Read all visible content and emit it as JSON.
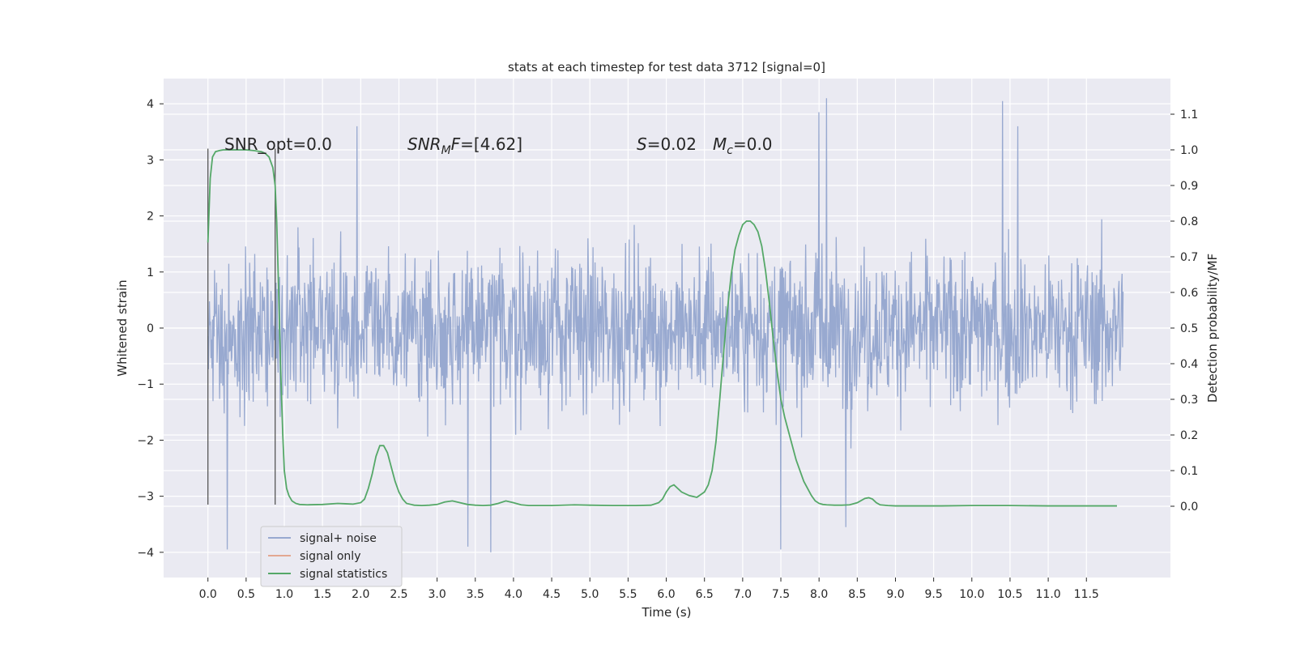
{
  "chart_data": {
    "type": "line",
    "title": "stats at each timestep for test data 3712 [signal=0]",
    "xlabel": "Time (s)",
    "ylabel": "Whitened strain",
    "ylabel_right": "Detection probability/MF",
    "xlim": [
      -0.58,
      12.6
    ],
    "ylim": [
      -4.45,
      4.45
    ],
    "ylim_right": [
      -0.2,
      1.2
    ],
    "x_ticks": [
      "0.0",
      "0.5",
      "1.0",
      "1.5",
      "2.0",
      "2.5",
      "3.0",
      "3.5",
      "4.0",
      "4.5",
      "5.0",
      "5.5",
      "6.0",
      "6.5",
      "7.0",
      "7.5",
      "8.0",
      "8.5",
      "9.0",
      "9.5",
      "10.0",
      "10.5",
      "11.0",
      "11.5"
    ],
    "y_ticks": [
      "4",
      "3",
      "2",
      "1",
      "0",
      "−1",
      "−2",
      "−3",
      "−4"
    ],
    "y_right_ticks": [
      "1.1",
      "1.0",
      "0.9",
      "0.8",
      "0.7",
      "0.6",
      "0.5",
      "0.4",
      "0.3",
      "0.2",
      "0.1",
      "0.0"
    ],
    "grid": true,
    "legend_position": "lower-left",
    "series": [
      {
        "name": "signal+ noise",
        "color": "#98a9d0",
        "axis": "left",
        "x_range": [
          0.0,
          11.98
        ],
        "typical_range": [
          -2.1,
          2.1
        ],
        "extremes": [
          -4.1,
          4.1
        ],
        "notable_peaks": [
          [
            1.95,
            3.6
          ],
          [
            8.0,
            3.85
          ],
          [
            8.1,
            4.1
          ],
          [
            10.4,
            4.05
          ],
          [
            10.6,
            3.6
          ],
          [
            3.7,
            -4.0
          ],
          [
            3.4,
            -3.9
          ],
          [
            0.25,
            -3.95
          ],
          [
            7.5,
            -3.95
          ],
          [
            8.35,
            -3.55
          ]
        ]
      },
      {
        "name": "signal only",
        "color": "#e3a891",
        "axis": "left",
        "x": [],
        "y": []
      },
      {
        "name": "signal statistics",
        "color": "#55a868",
        "axis": "right",
        "x": [
          0.0,
          0.03,
          0.06,
          0.1,
          0.15,
          0.2,
          0.3,
          0.4,
          0.5,
          0.6,
          0.7,
          0.75,
          0.8,
          0.85,
          0.88,
          0.9,
          0.92,
          0.95,
          0.98,
          1.0,
          1.03,
          1.06,
          1.1,
          1.15,
          1.2,
          1.3,
          1.5,
          1.7,
          1.8,
          1.9,
          2.0,
          2.05,
          2.1,
          2.15,
          2.2,
          2.25,
          2.3,
          2.35,
          2.4,
          2.45,
          2.5,
          2.55,
          2.6,
          2.7,
          2.8,
          2.9,
          3.0,
          3.1,
          3.2,
          3.3,
          3.4,
          3.5,
          3.6,
          3.7,
          3.8,
          3.9,
          4.0,
          4.1,
          4.2,
          4.5,
          4.8,
          5.0,
          5.3,
          5.6,
          5.8,
          5.9,
          5.95,
          6.0,
          6.05,
          6.1,
          6.2,
          6.3,
          6.4,
          6.5,
          6.55,
          6.6,
          6.65,
          6.7,
          6.75,
          6.8,
          6.85,
          6.9,
          6.95,
          7.0,
          7.05,
          7.1,
          7.15,
          7.2,
          7.25,
          7.3,
          7.35,
          7.4,
          7.45,
          7.5,
          7.55,
          7.6,
          7.7,
          7.8,
          7.9,
          7.95,
          8.0,
          8.05,
          8.1,
          8.2,
          8.3,
          8.4,
          8.5,
          8.6,
          8.65,
          8.7,
          8.75,
          8.8,
          8.9,
          9.0,
          9.3,
          9.6,
          10.0,
          10.5,
          11.0,
          11.5,
          11.8,
          11.9
        ],
        "y": [
          0.74,
          0.92,
          0.98,
          0.995,
          0.998,
          1.0,
          1.0,
          1.0,
          1.0,
          0.998,
          0.995,
          0.99,
          0.98,
          0.95,
          0.9,
          0.8,
          0.65,
          0.4,
          0.2,
          0.1,
          0.05,
          0.03,
          0.015,
          0.008,
          0.005,
          0.004,
          0.005,
          0.008,
          0.007,
          0.006,
          0.01,
          0.02,
          0.05,
          0.09,
          0.14,
          0.17,
          0.17,
          0.15,
          0.11,
          0.07,
          0.04,
          0.02,
          0.008,
          0.003,
          0.002,
          0.003,
          0.005,
          0.012,
          0.015,
          0.01,
          0.005,
          0.003,
          0.002,
          0.003,
          0.008,
          0.015,
          0.01,
          0.004,
          0.002,
          0.002,
          0.004,
          0.003,
          0.002,
          0.002,
          0.003,
          0.01,
          0.02,
          0.04,
          0.055,
          0.06,
          0.04,
          0.03,
          0.025,
          0.04,
          0.06,
          0.1,
          0.18,
          0.3,
          0.43,
          0.55,
          0.65,
          0.72,
          0.76,
          0.79,
          0.8,
          0.8,
          0.79,
          0.77,
          0.73,
          0.66,
          0.57,
          0.47,
          0.38,
          0.3,
          0.25,
          0.21,
          0.13,
          0.07,
          0.03,
          0.015,
          0.008,
          0.005,
          0.004,
          0.003,
          0.003,
          0.004,
          0.01,
          0.022,
          0.024,
          0.02,
          0.01,
          0.004,
          0.002,
          0.001,
          0.001,
          0.001,
          0.002,
          0.002,
          0.001,
          0.001,
          0.001,
          0.001
        ]
      }
    ],
    "vertical_lines": [
      {
        "x": 0.0,
        "ymin": -3.15,
        "ymax": 3.2,
        "color": "#555555"
      },
      {
        "x": 0.88,
        "ymin": -3.15,
        "ymax": 3.2,
        "color": "#555555"
      }
    ],
    "annotations": [
      {
        "text": "SNR_opt=0.0",
        "x": 0.2,
        "y": 3.3
      },
      {
        "text": "SNR_MF=[4.62]",
        "x": 2.6,
        "y": 3.3
      },
      {
        "text": "S=0.02",
        "x": 5.6,
        "y": 3.3
      },
      {
        "text": "M_c=0.0",
        "x": 6.6,
        "y": 3.3
      }
    ]
  },
  "legend": {
    "items": [
      {
        "label": "signal+ noise",
        "color": "#98a9d0"
      },
      {
        "label": "signal only",
        "color": "#e3a891"
      },
      {
        "label": "signal statistics",
        "color": "#55a868"
      }
    ]
  }
}
